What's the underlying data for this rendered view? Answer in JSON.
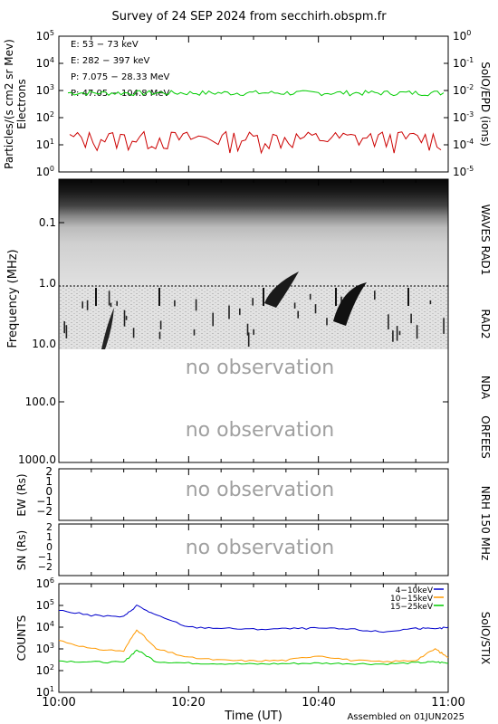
{
  "title": "Survey of 24 SEP 2024 from secchirh.obspm.fr",
  "footer": "Assembled on 01JUN2025",
  "no_observation": "no observation",
  "right_labels": {
    "epd": "SolO/EPD (ions)",
    "waves": "WAVES RAD1",
    "rad2": "RAD2",
    "nda": "NDA",
    "orfees": "ORFEES",
    "nrh": "NRH 150 MHz",
    "stix": "SolO/STIX"
  },
  "colors": {
    "e1": "#00cc00",
    "e2": "#cc0000",
    "p1": "#000000",
    "p2": "#0000cc",
    "stix1": "#0000cc",
    "stix2": "#ff9900",
    "stix3": "#00cc00"
  },
  "chart_data": [
    {
      "type": "line",
      "panel": "particles",
      "ylabel": "Particles/(s cm2 sr MeV) Electrons",
      "yscale": "log",
      "ylim": [
        1,
        100000
      ],
      "y_ticks": [
        "10^0",
        "10^1",
        "10^2",
        "10^3",
        "10^4",
        "10^5"
      ],
      "y2_ticks": [
        "10^-5",
        "10^-4",
        "10^-3",
        "10^-2",
        "10^-1",
        "10^0"
      ],
      "legend": [
        "E: 53 - 73 keV",
        "E: 282 - 397 keV",
        "P: 7.075 - 28.33 MeV",
        "P: 47.05 - 104.8 MeV"
      ],
      "series": [
        {
          "name": "E: 53 - 73 keV",
          "level": 800,
          "x": [
            "10:00",
            "10:10",
            "10:20",
            "10:30",
            "10:40",
            "10:50",
            "11:00"
          ],
          "values": [
            750,
            800,
            850,
            800,
            820,
            780,
            800
          ]
        },
        {
          "name": "E: 282 - 397 keV",
          "level": 12,
          "x": [
            "10:00",
            "10:10",
            "10:20",
            "10:30",
            "10:40",
            "10:50",
            "11:00"
          ],
          "values": [
            10,
            15,
            12,
            10,
            14,
            12,
            12
          ]
        }
      ]
    },
    {
      "type": "heatmap",
      "panel": "radio spectrogram",
      "ylabel": "Frequency (MHz)",
      "yscale": "log",
      "ylim": [
        0.02,
        1000
      ],
      "y_ticks": [
        "0.1",
        "1.0",
        "10.0",
        "100.0",
        "1000.0"
      ],
      "instruments": [
        "WAVES RAD1",
        "RAD2",
        "NDA",
        "ORFEES"
      ]
    },
    {
      "type": "line",
      "panel": "NRH EW",
      "ylabel": "EW (Rs)",
      "y_ticks": [
        "-2",
        "-1",
        "0",
        "1",
        "2"
      ],
      "ylim": [
        -2.5,
        2.5
      ]
    },
    {
      "type": "line",
      "panel": "NRH SN",
      "ylabel": "SN (Rs)",
      "y_ticks": [
        "-2",
        "-1",
        "0",
        "1",
        "2"
      ],
      "ylim": [
        -2.5,
        2.5
      ]
    },
    {
      "type": "line",
      "panel": "STIX",
      "ylabel": "COUNTS",
      "yscale": "log",
      "ylim": [
        10,
        1000000
      ],
      "y_ticks": [
        "10^1",
        "10^2",
        "10^3",
        "10^4",
        "10^5",
        "10^6"
      ],
      "xlabel": "Time (UT)",
      "x_ticks": [
        "10:00",
        "10:20",
        "10:40",
        "11:00"
      ],
      "series": [
        {
          "name": "4-10keV",
          "x": [
            0,
            5,
            10,
            12,
            15,
            20,
            25,
            30,
            35,
            40,
            45,
            50,
            55,
            58,
            60
          ],
          "values": [
            60000,
            35000,
            30000,
            100000,
            35000,
            10000,
            9000,
            8000,
            8500,
            9000,
            8000,
            6000,
            9000,
            8000,
            10000
          ]
        },
        {
          "name": "10-15keV",
          "x": [
            0,
            5,
            10,
            12,
            15,
            20,
            25,
            30,
            35,
            40,
            45,
            50,
            55,
            58,
            60
          ],
          "values": [
            2500,
            1000,
            800,
            8000,
            1000,
            400,
            300,
            280,
            300,
            500,
            300,
            250,
            300,
            1000,
            400
          ]
        },
        {
          "name": "15-25keV",
          "x": [
            0,
            5,
            10,
            12,
            15,
            20,
            25,
            30,
            35,
            40,
            45,
            50,
            55,
            58,
            60
          ],
          "values": [
            280,
            250,
            240,
            900,
            260,
            220,
            210,
            200,
            210,
            220,
            210,
            200,
            230,
            250,
            220
          ]
        }
      ]
    }
  ]
}
